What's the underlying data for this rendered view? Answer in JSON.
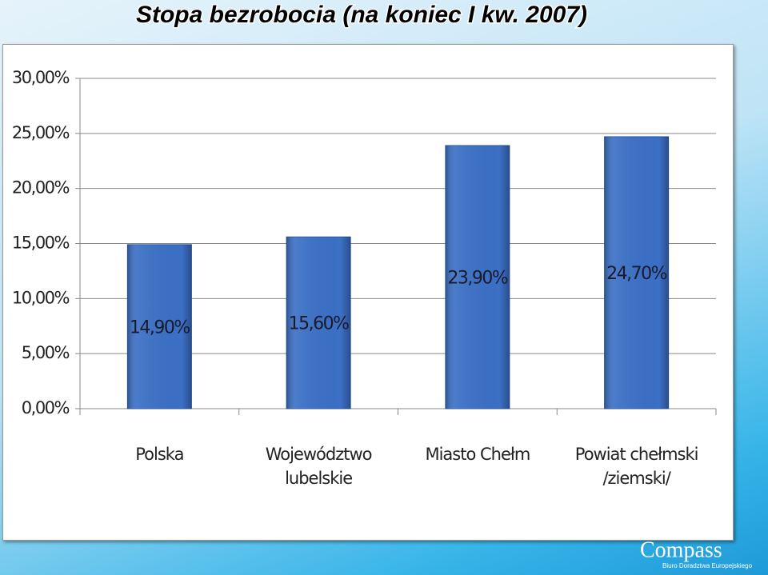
{
  "chart_data": {
    "type": "bar",
    "title": "Stopa bezrobocia (na koniec I kw. 2007)",
    "categories": [
      "Polska",
      "Województwo lubelskie",
      "Miasto Chełm",
      "Powiat chełmski /ziemski/"
    ],
    "values": [
      14.9,
      15.6,
      23.9,
      24.7
    ],
    "value_labels": [
      "14,90%",
      "15,60%",
      "23,90%",
      "24,70%"
    ],
    "color": "#3b70c6",
    "ylim": [
      0,
      30
    ],
    "yticks": [
      {
        "value": 0,
        "label": "0,00%"
      },
      {
        "value": 5,
        "label": "5,00%"
      },
      {
        "value": 10,
        "label": "10,00%"
      },
      {
        "value": 15,
        "label": "15,00%"
      },
      {
        "value": 20,
        "label": "20,00%"
      },
      {
        "value": 25,
        "label": "25,00%"
      },
      {
        "value": 30,
        "label": "30,00%"
      }
    ],
    "grid": true
  },
  "footer": {
    "logo": "Compass",
    "tagline": "Biuro Doradztwa Europejskiego"
  }
}
